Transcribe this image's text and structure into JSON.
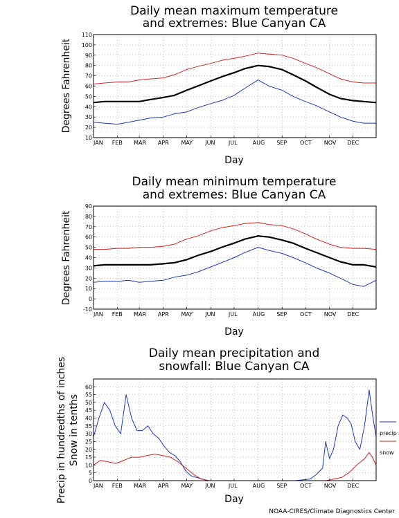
{
  "chart_data": [
    {
      "type": "line",
      "title_lines": [
        "Daily mean maximum temperature",
        "and extremes: Blue Canyan CA"
      ],
      "ylabel": "Degrees Fahrenheit",
      "xlabel": "Day",
      "categories": [
        "JAN",
        "FEB",
        "MAR",
        "APR",
        "MAY",
        "JUN",
        "JUL",
        "AUG",
        "SEP",
        "OCT",
        "NOV",
        "DEC"
      ],
      "yticks": [
        10,
        20,
        30,
        40,
        50,
        60,
        70,
        80,
        90,
        100,
        110
      ],
      "ylim": [
        10,
        110
      ],
      "grid": true,
      "series": [
        {
          "color": "#d62020",
          "x": [
            1,
            15,
            32,
            46,
            60,
            74,
            91,
            105,
            121,
            135,
            152,
            166,
            182,
            196,
            213,
            227,
            244,
            258,
            274,
            288,
            305,
            319,
            335,
            349,
            365
          ],
          "values": [
            62,
            63,
            64,
            64,
            66,
            67,
            68,
            71,
            76,
            79,
            82,
            85,
            87,
            89,
            92,
            91,
            90,
            87,
            82,
            78,
            72,
            67,
            64,
            63,
            63
          ]
        },
        {
          "color": "#000000",
          "x": [
            1,
            15,
            32,
            46,
            60,
            74,
            91,
            105,
            121,
            135,
            152,
            166,
            182,
            196,
            213,
            227,
            244,
            258,
            274,
            288,
            305,
            319,
            335,
            349,
            365
          ],
          "values": [
            44,
            45,
            45,
            45,
            45,
            47,
            49,
            51,
            56,
            60,
            65,
            69,
            73,
            77,
            80,
            79,
            76,
            71,
            65,
            59,
            52,
            48,
            46,
            45,
            44
          ]
        },
        {
          "color": "#1a35c8",
          "x": [
            1,
            15,
            32,
            46,
            60,
            74,
            91,
            105,
            121,
            135,
            152,
            166,
            182,
            196,
            213,
            227,
            244,
            258,
            274,
            288,
            305,
            319,
            335,
            349,
            365
          ],
          "values": [
            25,
            24,
            23,
            25,
            27,
            29,
            30,
            33,
            35,
            39,
            43,
            46,
            51,
            58,
            66,
            60,
            56,
            50,
            45,
            41,
            35,
            30,
            26,
            24,
            24
          ]
        }
      ]
    },
    {
      "type": "line",
      "title_lines": [
        "Daily mean minimum temperature",
        "and extremes: Blue Canyan CA"
      ],
      "ylabel": "Degrees Fahrenheit",
      "xlabel": "Day",
      "categories": [
        "JAN",
        "FEB",
        "MAR",
        "APR",
        "MAY",
        "JUN",
        "JUL",
        "AUG",
        "SEP",
        "OCT",
        "NOV",
        "DEC"
      ],
      "yticks": [
        -10,
        0,
        10,
        20,
        30,
        40,
        50,
        60,
        70,
        80,
        90
      ],
      "ylim": [
        -10,
        90
      ],
      "grid": true,
      "series": [
        {
          "color": "#d62020",
          "x": [
            1,
            15,
            32,
            46,
            60,
            74,
            91,
            105,
            121,
            135,
            152,
            166,
            182,
            196,
            213,
            227,
            244,
            258,
            274,
            288,
            305,
            319,
            335,
            349,
            365
          ],
          "values": [
            48,
            48,
            49,
            49,
            50,
            50,
            51,
            53,
            58,
            61,
            66,
            69,
            71,
            73,
            74,
            72,
            71,
            68,
            63,
            58,
            53,
            50,
            49,
            49,
            48
          ]
        },
        {
          "color": "#000000",
          "x": [
            1,
            15,
            32,
            46,
            60,
            74,
            91,
            105,
            121,
            135,
            152,
            166,
            182,
            196,
            213,
            227,
            244,
            258,
            274,
            288,
            305,
            319,
            335,
            349,
            365
          ],
          "values": [
            32,
            33,
            33,
            33,
            33,
            33,
            34,
            35,
            38,
            42,
            46,
            50,
            54,
            58,
            61,
            60,
            57,
            54,
            49,
            45,
            40,
            36,
            33,
            33,
            31
          ]
        },
        {
          "color": "#1a35c8",
          "x": [
            1,
            15,
            32,
            46,
            60,
            74,
            91,
            105,
            121,
            135,
            152,
            166,
            182,
            196,
            213,
            227,
            244,
            258,
            274,
            288,
            305,
            319,
            335,
            349,
            365
          ],
          "values": [
            16,
            17,
            17,
            18,
            16,
            17,
            18,
            21,
            23,
            26,
            31,
            35,
            40,
            45,
            50,
            47,
            44,
            40,
            35,
            30,
            25,
            20,
            14,
            12,
            18
          ]
        }
      ]
    },
    {
      "type": "line",
      "title_lines": [
        "Daily mean precipitation and",
        "snowfall: Blue Canyan CA"
      ],
      "ylabel_lines": [
        "Precip in hundredths of inches",
        "Snow in tenths"
      ],
      "xlabel": "Day",
      "categories": [
        "JAN",
        "FEB",
        "MAR",
        "APR",
        "MAY",
        "JUN",
        "JUL",
        "AUG",
        "SEP",
        "OCT",
        "NOV",
        "DEC"
      ],
      "yticks": [
        0,
        5,
        10,
        15,
        20,
        25,
        30,
        35,
        40,
        45,
        50,
        55,
        60
      ],
      "ylim": [
        0,
        65
      ],
      "grid": true,
      "legend": [
        "precip",
        "snow"
      ],
      "series": [
        {
          "name": "precip",
          "color": "#1a35c8",
          "x": [
            1,
            8,
            15,
            22,
            29,
            36,
            43,
            50,
            57,
            64,
            71,
            78,
            85,
            92,
            99,
            106,
            113,
            120,
            127,
            134,
            141,
            150,
            165,
            180,
            200,
            220,
            240,
            260,
            280,
            288,
            296,
            300,
            305,
            310,
            316,
            322,
            328,
            333,
            338,
            344,
            350,
            356,
            361,
            365
          ],
          "values": [
            28,
            40,
            50,
            45,
            35,
            30,
            55,
            40,
            32,
            32,
            35,
            30,
            27,
            22,
            18,
            16,
            12,
            6,
            3,
            2,
            1,
            0,
            0,
            0,
            0,
            0,
            0,
            0,
            1,
            4,
            8,
            25,
            14,
            20,
            35,
            42,
            40,
            36,
            25,
            20,
            35,
            58,
            40,
            28
          ]
        },
        {
          "name": "snow",
          "color": "#d62020",
          "x": [
            1,
            10,
            20,
            30,
            40,
            50,
            60,
            70,
            80,
            90,
            100,
            110,
            120,
            130,
            140,
            150,
            300,
            310,
            320,
            330,
            340,
            350,
            356,
            360,
            365
          ],
          "values": [
            10,
            13,
            12,
            11,
            13,
            15,
            15,
            16,
            17,
            16,
            15,
            12,
            8,
            4,
            1,
            0,
            0,
            1,
            2,
            5,
            10,
            14,
            18,
            15,
            10
          ]
        }
      ]
    }
  ],
  "credit": "NOAA-CIRES/Climate Diagnostics Center"
}
